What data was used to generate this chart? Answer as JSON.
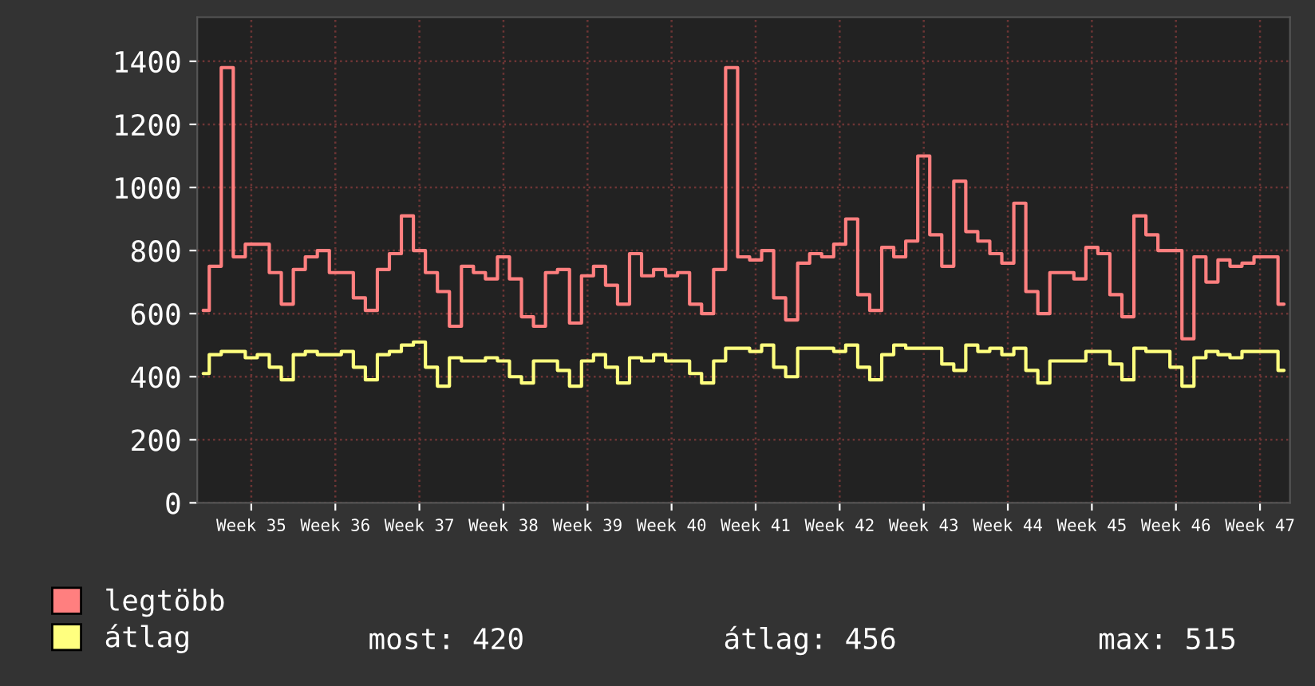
{
  "chart_data": {
    "type": "step",
    "categories": [
      null,
      null,
      null,
      null,
      "Week 35",
      null,
      null,
      null,
      null,
      null,
      null,
      "Week 36",
      null,
      null,
      null,
      null,
      null,
      null,
      "Week 37",
      null,
      null,
      null,
      null,
      null,
      null,
      "Week 38",
      null,
      null,
      null,
      null,
      null,
      null,
      "Week 39",
      null,
      null,
      null,
      null,
      null,
      null,
      "Week 40",
      null,
      null,
      null,
      null,
      null,
      null,
      "Week 41",
      null,
      null,
      null,
      null,
      null,
      null,
      "Week 42",
      null,
      null,
      null,
      null,
      null,
      null,
      "Week 43",
      null,
      null,
      null,
      null,
      null,
      null,
      "Week 44",
      null,
      null,
      null,
      null,
      null,
      null,
      "Week 45",
      null,
      null,
      null,
      null,
      null,
      null,
      "Week 46",
      null,
      null,
      null,
      null,
      null,
      null,
      "Week 47",
      null,
      null
    ],
    "series": [
      {
        "name": "legtöbb",
        "color": "#ff7f7f",
        "values": [
          610,
          750,
          1380,
          780,
          820,
          820,
          730,
          630,
          740,
          780,
          800,
          730,
          730,
          650,
          610,
          740,
          790,
          910,
          800,
          730,
          670,
          560,
          750,
          730,
          710,
          780,
          710,
          590,
          560,
          730,
          740,
          570,
          720,
          750,
          690,
          630,
          790,
          720,
          740,
          720,
          730,
          630,
          600,
          740,
          1380,
          780,
          770,
          800,
          650,
          580,
          760,
          790,
          780,
          820,
          900,
          660,
          610,
          810,
          780,
          830,
          1100,
          850,
          750,
          1020,
          860,
          830,
          790,
          760,
          950,
          670,
          600,
          730,
          730,
          710,
          810,
          790,
          660,
          590,
          910,
          850,
          800,
          800,
          520,
          780,
          700,
          770,
          750,
          760,
          780,
          780,
          630
        ]
      },
      {
        "name": "átlag",
        "color": "#ffff7f",
        "values": [
          410,
          470,
          480,
          480,
          460,
          470,
          430,
          390,
          470,
          480,
          470,
          470,
          480,
          430,
          390,
          470,
          480,
          500,
          510,
          430,
          370,
          460,
          450,
          450,
          460,
          450,
          400,
          380,
          450,
          450,
          420,
          370,
          450,
          470,
          430,
          380,
          460,
          450,
          470,
          450,
          450,
          410,
          380,
          450,
          490,
          490,
          480,
          500,
          430,
          400,
          490,
          490,
          490,
          480,
          500,
          430,
          390,
          470,
          500,
          490,
          490,
          490,
          440,
          420,
          500,
          480,
          490,
          470,
          490,
          420,
          380,
          450,
          450,
          450,
          480,
          480,
          440,
          390,
          490,
          480,
          480,
          430,
          370,
          460,
          480,
          470,
          460,
          480,
          480,
          480,
          420
        ]
      }
    ],
    "ylim": [
      0,
      1540
    ],
    "yticks": [
      0,
      200,
      400,
      600,
      800,
      1000,
      1200,
      1400
    ],
    "grid": true,
    "legend": "bottom left",
    "annotations": [
      "most: 420",
      "átlag: 456",
      "max: 515"
    ]
  }
}
